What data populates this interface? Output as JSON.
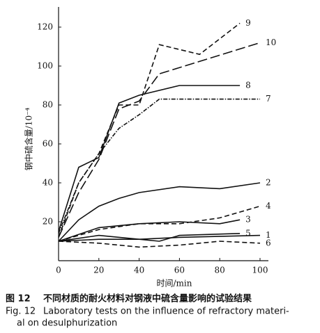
{
  "chart_data": {
    "type": "line",
    "x_label": "时间/min",
    "y_label": "钢中硫含量/10⁻⁴",
    "xlim": [
      0,
      100
    ],
    "ylim": [
      0,
      130
    ],
    "xticks": [
      0,
      20,
      40,
      60,
      80,
      100
    ],
    "yticks": [
      20,
      40,
      60,
      80,
      100,
      120
    ],
    "series": [
      {
        "name": "1",
        "color": "#111",
        "style": "solid",
        "x": [
          0,
          20,
          40,
          60,
          100
        ],
        "values": [
          10,
          11,
          11,
          12,
          13
        ]
      },
      {
        "name": "2",
        "color": "#111",
        "style": "solid",
        "x": [
          0,
          10,
          20,
          30,
          40,
          60,
          80,
          100
        ],
        "values": [
          10,
          21,
          28,
          32,
          35,
          38,
          37,
          40
        ]
      },
      {
        "name": "3",
        "color": "#111",
        "style": "solid",
        "x": [
          0,
          20,
          40,
          60,
          80,
          90
        ],
        "values": [
          10,
          17,
          19,
          20,
          19,
          21
        ]
      },
      {
        "name": "4",
        "color": "#111",
        "style": "dashed",
        "x": [
          0,
          20,
          40,
          60,
          80,
          100
        ],
        "values": [
          10,
          16,
          19,
          19,
          22,
          28
        ]
      },
      {
        "name": "5",
        "color": "#111",
        "style": "solid",
        "x": [
          0,
          20,
          40,
          50,
          60,
          90
        ],
        "values": [
          10,
          13,
          11,
          10,
          13,
          14
        ]
      },
      {
        "name": "6",
        "color": "#111",
        "style": "dashed",
        "x": [
          0,
          20,
          40,
          60,
          80,
          100
        ],
        "values": [
          10,
          9,
          7,
          8,
          10,
          9
        ]
      },
      {
        "name": "7",
        "color": "#111",
        "style": "dash-dot",
        "x": [
          0,
          10,
          20,
          30,
          40,
          50,
          100
        ],
        "values": [
          14,
          40,
          55,
          68,
          75,
          83,
          83
        ]
      },
      {
        "name": "8",
        "color": "#111",
        "style": "solid",
        "x": [
          0,
          10,
          20,
          30,
          40,
          60,
          90
        ],
        "values": [
          15,
          48,
          53,
          81,
          85,
          90,
          90
        ]
      },
      {
        "name": "9",
        "color": "#111",
        "style": "dashed",
        "x": [
          0,
          10,
          20,
          30,
          40,
          50,
          70,
          90
        ],
        "values": [
          12,
          40,
          55,
          80,
          80,
          111,
          106,
          122
        ]
      },
      {
        "name": "10",
        "color": "#111",
        "style": "long-dash",
        "x": [
          0,
          10,
          20,
          30,
          40,
          50,
          100
        ],
        "values": [
          12,
          35,
          52,
          78,
          82,
          96,
          112
        ]
      }
    ],
    "caption": {
      "cn_label": "图 12",
      "cn": "不同材质的耐火材料对钢液中硫含量影响的试验结果",
      "en_label": "Fig. 12",
      "en": [
        "Laboratory tests on the influence of refractory materi-",
        "al on desulphurization"
      ]
    }
  }
}
